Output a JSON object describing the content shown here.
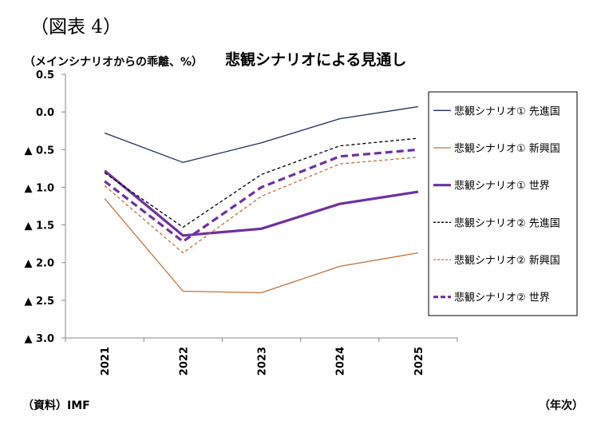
{
  "figure_label": "（図表 4）",
  "y_unit_label": "（メインシナリオからの乖離、%）",
  "source_label": "（資料）IMF",
  "x_unit_label": "（年次）",
  "chart_data": {
    "type": "line",
    "title": "悲観シナリオによる見通し",
    "categories": [
      "2021",
      "2022",
      "2023",
      "2024",
      "2025"
    ],
    "ylim": [
      -3.0,
      0.5
    ],
    "y_ticks": [
      {
        "value": 0.5,
        "label": "0.5"
      },
      {
        "value": 0.0,
        "label": "0.0"
      },
      {
        "value": -0.5,
        "label": "▲ 0.5"
      },
      {
        "value": -1.0,
        "label": "▲ 1.0"
      },
      {
        "value": -1.5,
        "label": "▲ 1.5"
      },
      {
        "value": -2.0,
        "label": "▲ 2.0"
      },
      {
        "value": -2.5,
        "label": "▲ 2.5"
      },
      {
        "value": -3.0,
        "label": "▲ 3.0"
      }
    ],
    "grid": false,
    "legend_position": "right",
    "series": [
      {
        "name": "悲観シナリオ① 先進国",
        "values": [
          -0.28,
          -0.67,
          -0.41,
          -0.09,
          0.07
        ],
        "color": "#1f2d5a",
        "dash": "solid",
        "width": "thin"
      },
      {
        "name": "悲観シナリオ① 新興国",
        "values": [
          -1.15,
          -2.38,
          -2.4,
          -2.05,
          -1.87
        ],
        "color": "#c0733a",
        "dash": "solid",
        "width": "thin"
      },
      {
        "name": "悲観シナリオ① 世界",
        "values": [
          -0.78,
          -1.64,
          -1.55,
          -1.22,
          -1.06
        ],
        "color": "#7030a0",
        "dash": "solid",
        "width": "thick"
      },
      {
        "name": "悲観シナリオ② 先進国",
        "values": [
          -0.81,
          -1.53,
          -0.83,
          -0.45,
          -0.35
        ],
        "color": "#000000",
        "dash": "dashed",
        "width": "thin"
      },
      {
        "name": "悲観シナリオ② 新興国",
        "values": [
          -0.98,
          -1.87,
          -1.12,
          -0.69,
          -0.6
        ],
        "color": "#c0733a",
        "dash": "dashed",
        "width": "thin"
      },
      {
        "name": "悲観シナリオ② 世界",
        "values": [
          -0.92,
          -1.72,
          -1.0,
          -0.59,
          -0.5
        ],
        "color": "#7030a0",
        "dash": "dashed",
        "width": "thick"
      }
    ]
  }
}
